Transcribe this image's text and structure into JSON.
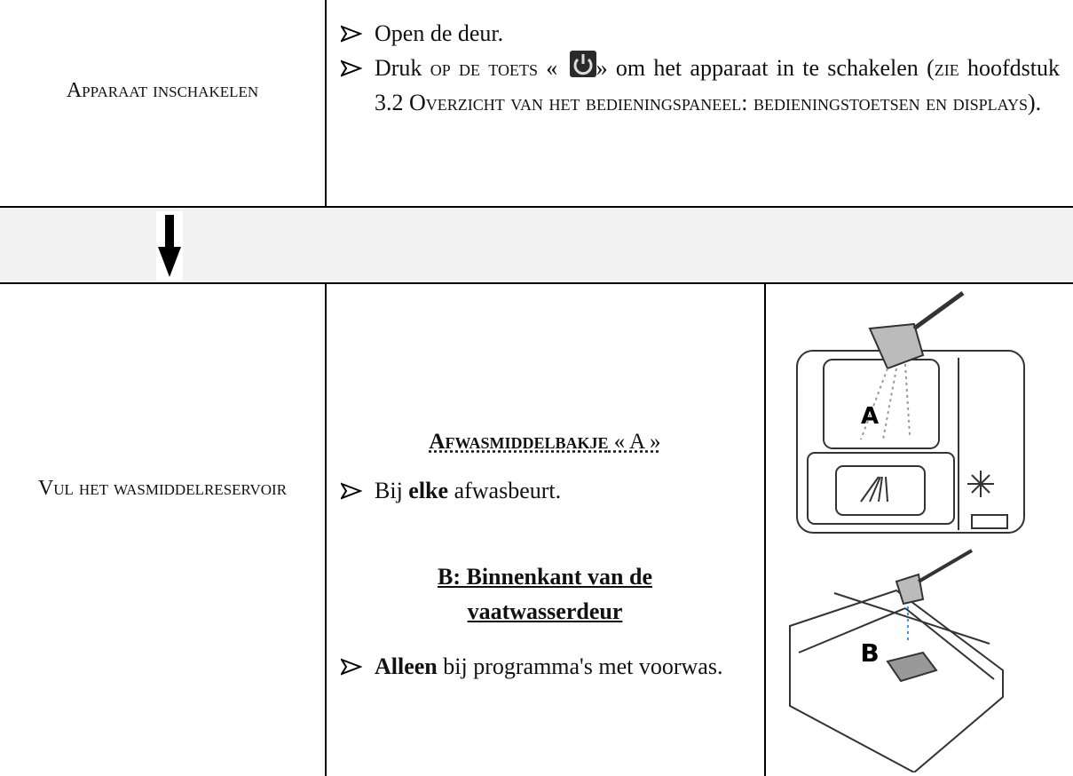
{
  "rows": [
    {
      "label": "Apparaat inschakelen",
      "step1": "Open de deur.",
      "step2": {
        "a": "Druk ",
        "b": "op de toets",
        "c": " « ",
        "d": "» om het apparaat in te schakelen (",
        "e": "zie",
        "f": " hoofdstuk 3.2 ",
        "g": "Overzicht van het bedieningspaneel: bedieningstoetsen en displays",
        "h": ")."
      }
    },
    {
      "label": "Vul het wasmiddelreservoir",
      "heading": {
        "a": "Afwasmiddelbakje",
        "b": " « A »"
      },
      "step1": {
        "a": "Bij ",
        "b": "elke",
        "c": " afwasbeurt."
      },
      "subheading": "B: Binnenkant van de vaatwasserdeur",
      "step2": {
        "a": "Alleen",
        "b": " bij programma's met voorwas."
      },
      "images": [
        {
          "label": "A"
        },
        {
          "label": "B"
        }
      ]
    }
  ]
}
